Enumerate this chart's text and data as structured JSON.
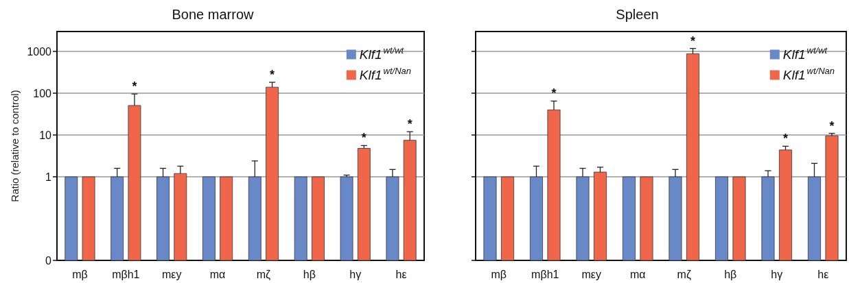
{
  "chart_data": [
    {
      "type": "bar",
      "title": "Bone marrow",
      "ylabel": "Ratio (relative to control)",
      "categories": [
        "mβ",
        "mβh1",
        "mεy",
        "mα",
        "mζ",
        "hβ",
        "hγ",
        "hε"
      ],
      "series": [
        {
          "name": "Klf1$^{wt/wt}$",
          "color": "#6888c8",
          "values": [
            1,
            1,
            1,
            1,
            1,
            1,
            1,
            1
          ],
          "errors": [
            null,
            [
              1,
              1.6
            ],
            [
              1,
              1.6
            ],
            null,
            [
              1,
              2.4
            ],
            null,
            [
              1,
              1.1
            ],
            [
              1,
              1.5
            ]
          ]
        },
        {
          "name": "Klf1$^{wt/Nan}$",
          "color": "#f0664a",
          "values": [
            1,
            51,
            1.2,
            1,
            140,
            1,
            4.8,
            7.5
          ],
          "errors": [
            null,
            [
              51,
              96
            ],
            [
              1.2,
              1.8
            ],
            null,
            [
              140,
              183
            ],
            null,
            [
              4.8,
              5.6
            ],
            [
              7.5,
              12
            ]
          ]
        }
      ],
      "log": true,
      "ylim": [
        0.01,
        3000
      ],
      "yticks": [
        {
          "value": 0.01,
          "label": "0"
        },
        1,
        10,
        100,
        1000
      ],
      "grid": "y",
      "legend": "top right",
      "annotations": [
        {
          "text": "*",
          "x": "mβh1",
          "y": 51
        },
        {
          "text": "*",
          "x": "mζ",
          "y": 140
        },
        {
          "text": "*",
          "x": "hγ",
          "y": 4.8
        },
        {
          "text": "*",
          "x": "hε",
          "y": 7.5
        }
      ]
    },
    {
      "type": "bar",
      "title": "Spleen",
      "categories": [
        "mβ",
        "mβh1",
        "mεy",
        "mα",
        "mζ",
        "hβ",
        "hγ",
        "hε"
      ],
      "series": [
        {
          "name": "Klf1$^{wt/wt}$",
          "color": "#6888c8",
          "values": [
            1,
            1,
            1,
            1,
            1,
            1,
            1,
            1
          ],
          "errors": [
            null,
            [
              1,
              1.8
            ],
            [
              1,
              1.6
            ],
            null,
            [
              1,
              1.5
            ],
            null,
            [
              1,
              1.4
            ],
            [
              1,
              2.1
            ]
          ]
        },
        {
          "name": "Klf1$^{wt/Nan}$",
          "color": "#f0664a",
          "values": [
            1,
            40,
            1.3,
            1,
            880,
            1,
            4.4,
            9.6
          ],
          "errors": [
            null,
            [
              40,
              65
            ],
            [
              1.3,
              1.7
            ],
            null,
            [
              880,
              1180
            ],
            null,
            [
              4.4,
              5.4
            ],
            [
              9.6,
              11
            ]
          ]
        }
      ],
      "log": true,
      "ylim": [
        0.01,
        3000
      ],
      "yticks": [
        {
          "value": 0.01,
          "label": null
        },
        1,
        10,
        100,
        1000
      ],
      "grid": "y",
      "legend": "top right",
      "tick_labels": "x",
      "annotations": [
        {
          "text": "*",
          "x": "mβh1",
          "y": 40
        },
        {
          "text": "*",
          "x": "mζ",
          "y": 880
        },
        {
          "text": "*",
          "x": "hγ",
          "y": 4.4
        },
        {
          "text": "*",
          "x": "hε",
          "y": 9.6
        }
      ]
    }
  ]
}
